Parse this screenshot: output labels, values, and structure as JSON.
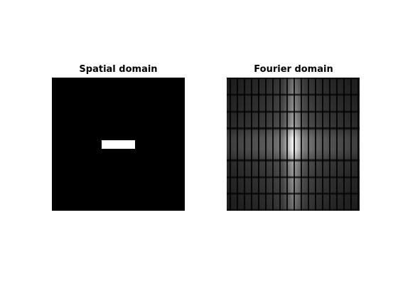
{
  "figure": {
    "panels": [
      {
        "title": "Spatial domain",
        "image": "white rectangle on black background"
      },
      {
        "title": "Fourier domain",
        "image": "2D Fourier magnitude spectrum (sinc pattern)"
      }
    ]
  },
  "colors": {
    "background": "#ffffff",
    "image_background": "#000000",
    "rectangle": "#ffffff"
  }
}
